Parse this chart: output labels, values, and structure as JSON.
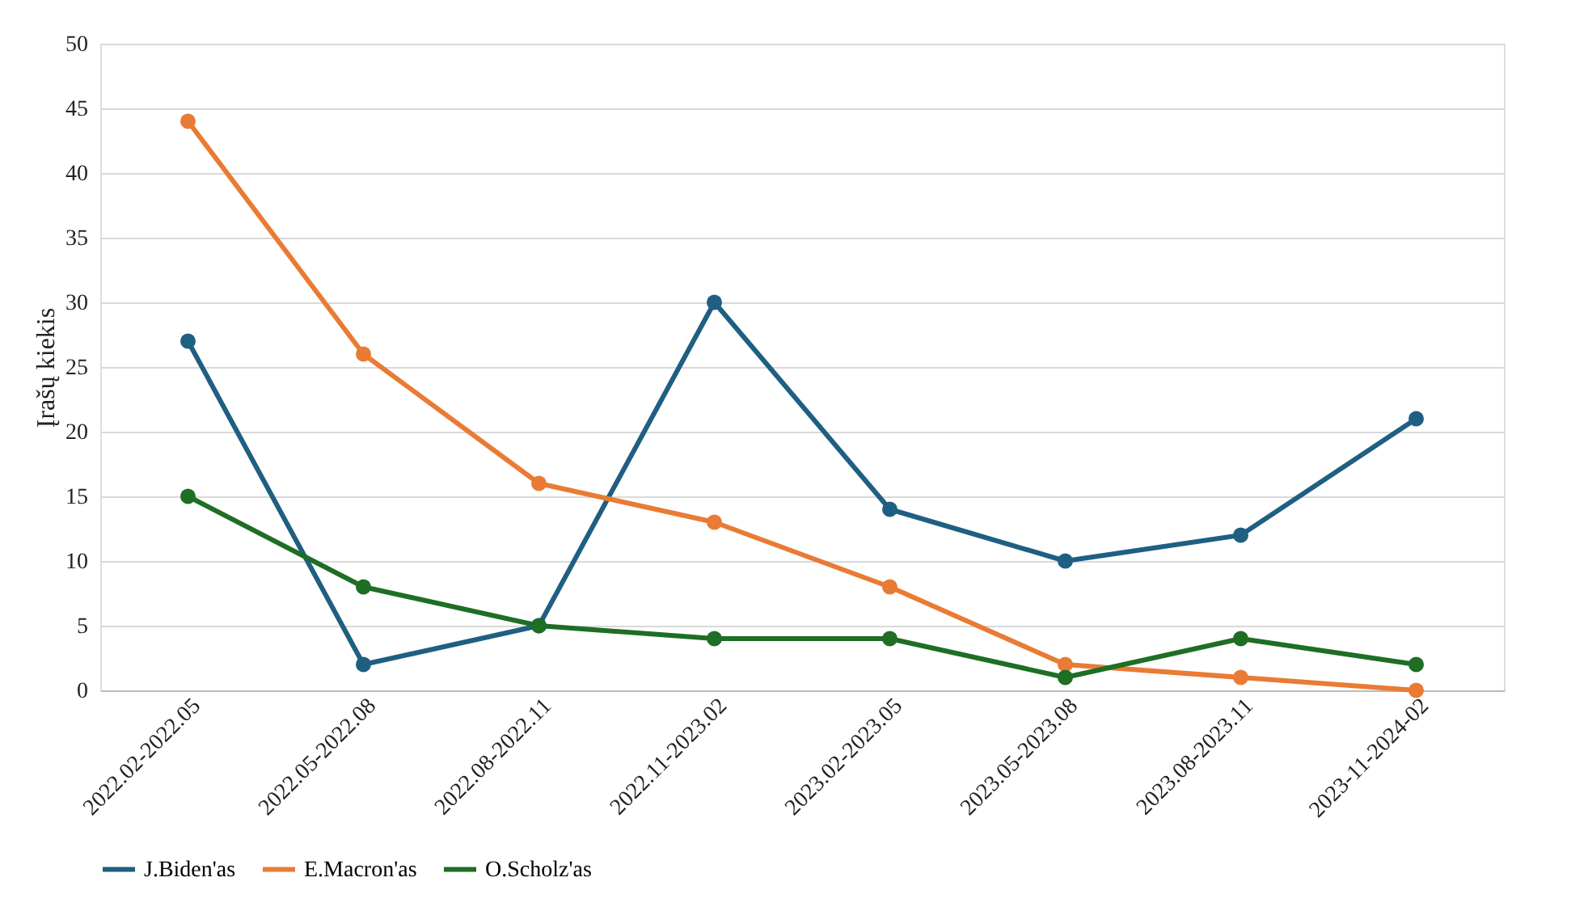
{
  "chart_data": {
    "type": "line",
    "ylabel": "Įrašų kiekis",
    "categories": [
      "2022.02-2022.05",
      "2022.05-2022.08",
      "2022.08-2022.11",
      "2022.11-2023.02",
      "2023.02-2023.05",
      "2023.05-2023.08",
      "2023.08-2023.11",
      "2023-11-2024-02"
    ],
    "series": [
      {
        "name": "J.Biden'as",
        "color": "#1f5f82",
        "values": [
          27,
          2,
          5,
          30,
          14,
          10,
          12,
          21
        ]
      },
      {
        "name": "E.Macron'as",
        "color": "#e97b35",
        "values": [
          44,
          26,
          16,
          13,
          8,
          2,
          1,
          0
        ]
      },
      {
        "name": "O.Scholz'as",
        "color": "#1e6e25",
        "values": [
          15,
          8,
          5,
          4,
          4,
          1,
          4,
          2
        ]
      }
    ],
    "ylim": [
      0,
      50
    ],
    "yticks": [
      0,
      5,
      10,
      15,
      20,
      25,
      30,
      35,
      40,
      45,
      50
    ],
    "grid": "y",
    "legend": "bottom",
    "marker": "circle",
    "line_style": "solid"
  }
}
